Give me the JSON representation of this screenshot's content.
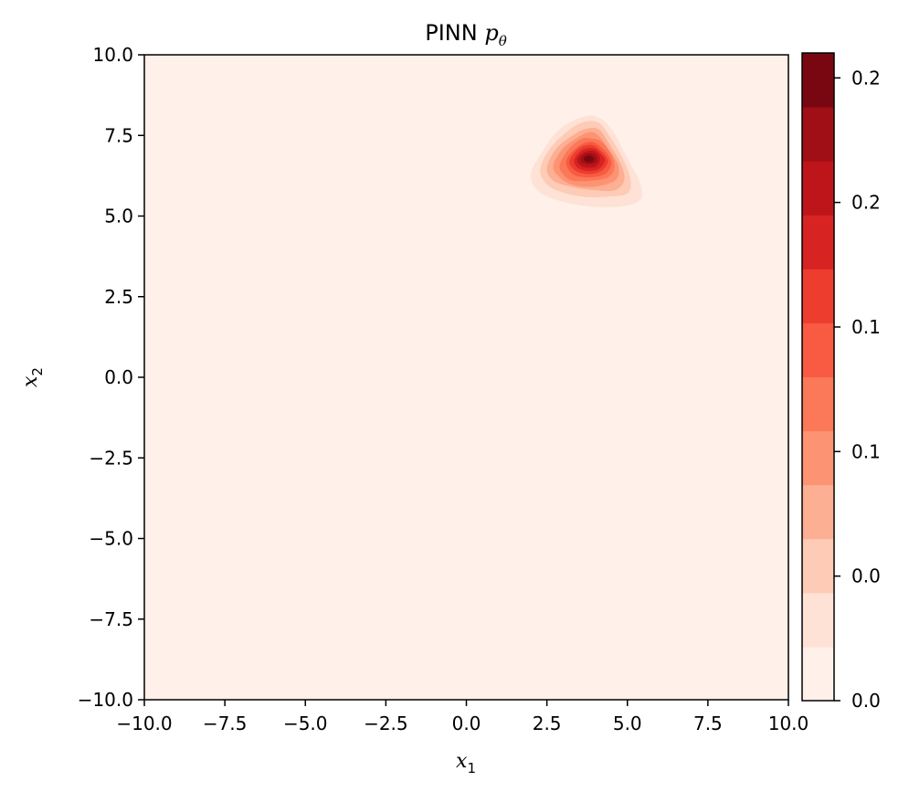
{
  "chart_data": {
    "type": "heatmap",
    "subtype": "filled-contour",
    "title": {
      "text": "PINN ",
      "math_symbol": "p",
      "math_subscript": "θ"
    },
    "xlabel": {
      "symbol": "x",
      "subscript": "1"
    },
    "ylabel": {
      "symbol": "x",
      "subscript": "2"
    },
    "xlim": [
      -10,
      10
    ],
    "ylim": [
      -10,
      10
    ],
    "x_ticks": [
      -10,
      -7.5,
      -5,
      -2.5,
      0,
      2.5,
      5,
      7.5,
      10
    ],
    "x_tick_labels": [
      "−10.0",
      "−7.5",
      "−5.0",
      "−2.5",
      "0.0",
      "2.5",
      "5.0",
      "7.5",
      "10.0"
    ],
    "y_ticks": [
      -10,
      -7.5,
      -5,
      -2.5,
      0,
      2.5,
      5,
      7.5,
      10
    ],
    "y_tick_labels": [
      "−10.0",
      "−7.5",
      "−5.0",
      "−2.5",
      "0.0",
      "2.5",
      "5.0",
      "7.5",
      "10.0"
    ],
    "grid": false,
    "colormap": "Reds",
    "colorbar": {
      "range": [
        0.0,
        0.26
      ],
      "ticks": [
        0.0,
        0.05,
        0.1,
        0.15,
        0.2,
        0.25
      ],
      "tick_labels": [
        "0.0",
        "0.0",
        "0.1",
        "0.1",
        "0.2",
        "0.2"
      ],
      "level_colors": [
        "#fff0e9",
        "#fee2d5",
        "#fdcbb6",
        "#fcaf93",
        "#fc9474",
        "#fb7858",
        "#f85b41",
        "#ec3d2f",
        "#d72423",
        "#bd151a",
        "#a00f15",
        "#790711"
      ]
    },
    "density_peak": {
      "x": 3.8,
      "y": 6.8,
      "max_value": 0.25
    },
    "contour_levels": [
      {
        "level": 0.005,
        "color": "#fee2d5",
        "points": [
          [
            2.0,
            6.3
          ],
          [
            2.3,
            6.9
          ],
          [
            2.8,
            7.6
          ],
          [
            3.4,
            8.0
          ],
          [
            4.0,
            8.1
          ],
          [
            4.5,
            7.7
          ],
          [
            5.0,
            6.8
          ],
          [
            5.4,
            6.0
          ],
          [
            5.4,
            5.5
          ],
          [
            4.8,
            5.3
          ],
          [
            3.8,
            5.3
          ],
          [
            2.8,
            5.5
          ],
          [
            2.2,
            5.8
          ]
        ]
      },
      {
        "level": 0.025,
        "color": "#fdcbb6",
        "points": [
          [
            2.3,
            6.5
          ],
          [
            2.6,
            7.1
          ],
          [
            3.1,
            7.6
          ],
          [
            3.6,
            7.9
          ],
          [
            4.1,
            7.9
          ],
          [
            4.5,
            7.4
          ],
          [
            4.9,
            6.7
          ],
          [
            5.1,
            6.1
          ],
          [
            5.0,
            5.7
          ],
          [
            4.4,
            5.6
          ],
          [
            3.6,
            5.6
          ],
          [
            2.8,
            5.8
          ],
          [
            2.4,
            6.1
          ]
        ]
      },
      {
        "level": 0.045,
        "color": "#fcaf93",
        "points": [
          [
            2.5,
            6.5
          ],
          [
            2.8,
            7.1
          ],
          [
            3.3,
            7.5
          ],
          [
            3.7,
            7.7
          ],
          [
            4.1,
            7.7
          ],
          [
            4.4,
            7.3
          ],
          [
            4.8,
            6.6
          ],
          [
            4.9,
            6.1
          ],
          [
            4.6,
            5.8
          ],
          [
            4.0,
            5.8
          ],
          [
            3.3,
            5.9
          ],
          [
            2.7,
            6.1
          ]
        ]
      },
      {
        "level": 0.065,
        "color": "#fc9474",
        "points": [
          [
            2.7,
            6.6
          ],
          [
            3.0,
            7.1
          ],
          [
            3.4,
            7.4
          ],
          [
            3.8,
            7.6
          ],
          [
            4.1,
            7.5
          ],
          [
            4.4,
            7.1
          ],
          [
            4.7,
            6.6
          ],
          [
            4.7,
            6.2
          ],
          [
            4.4,
            6.0
          ],
          [
            3.8,
            5.9
          ],
          [
            3.2,
            6.0
          ],
          [
            2.8,
            6.3
          ]
        ]
      },
      {
        "level": 0.085,
        "color": "#fb7858",
        "points": [
          [
            2.9,
            6.6
          ],
          [
            3.2,
            7.1
          ],
          [
            3.6,
            7.4
          ],
          [
            3.9,
            7.4
          ],
          [
            4.2,
            7.3
          ],
          [
            4.5,
            6.9
          ],
          [
            4.6,
            6.5
          ],
          [
            4.4,
            6.2
          ],
          [
            3.9,
            6.1
          ],
          [
            3.3,
            6.1
          ],
          [
            3.0,
            6.3
          ]
        ]
      },
      {
        "level": 0.11,
        "color": "#f85b41",
        "points": [
          [
            3.1,
            6.7
          ],
          [
            3.4,
            7.1
          ],
          [
            3.8,
            7.3
          ],
          [
            4.1,
            7.2
          ],
          [
            4.4,
            6.9
          ],
          [
            4.5,
            6.6
          ],
          [
            4.3,
            6.3
          ],
          [
            3.8,
            6.2
          ],
          [
            3.3,
            6.3
          ]
        ]
      },
      {
        "level": 0.135,
        "color": "#ec3d2f",
        "points": [
          [
            3.2,
            6.7
          ],
          [
            3.5,
            7.1
          ],
          [
            3.9,
            7.2
          ],
          [
            4.2,
            7.0
          ],
          [
            4.4,
            6.7
          ],
          [
            4.2,
            6.4
          ],
          [
            3.8,
            6.3
          ],
          [
            3.4,
            6.4
          ]
        ]
      },
      {
        "level": 0.16,
        "color": "#d72423",
        "points": [
          [
            3.35,
            6.75
          ],
          [
            3.6,
            7.05
          ],
          [
            3.95,
            7.1
          ],
          [
            4.2,
            6.9
          ],
          [
            4.3,
            6.7
          ],
          [
            4.1,
            6.45
          ],
          [
            3.75,
            6.4
          ],
          [
            3.45,
            6.5
          ]
        ]
      },
      {
        "level": 0.185,
        "color": "#bd151a",
        "points": [
          [
            3.45,
            6.8
          ],
          [
            3.7,
            7.0
          ],
          [
            4.0,
            7.0
          ],
          [
            4.15,
            6.8
          ],
          [
            4.05,
            6.55
          ],
          [
            3.75,
            6.5
          ],
          [
            3.5,
            6.6
          ]
        ]
      },
      {
        "level": 0.21,
        "color": "#a00f15",
        "points": [
          [
            3.55,
            6.8
          ],
          [
            3.75,
            6.95
          ],
          [
            4.0,
            6.9
          ],
          [
            4.05,
            6.7
          ],
          [
            3.85,
            6.6
          ],
          [
            3.6,
            6.65
          ]
        ]
      },
      {
        "level": 0.235,
        "color": "#790711",
        "points": [
          [
            3.65,
            6.8
          ],
          [
            3.8,
            6.88
          ],
          [
            3.95,
            6.8
          ],
          [
            3.9,
            6.68
          ],
          [
            3.72,
            6.68
          ]
        ]
      }
    ]
  }
}
